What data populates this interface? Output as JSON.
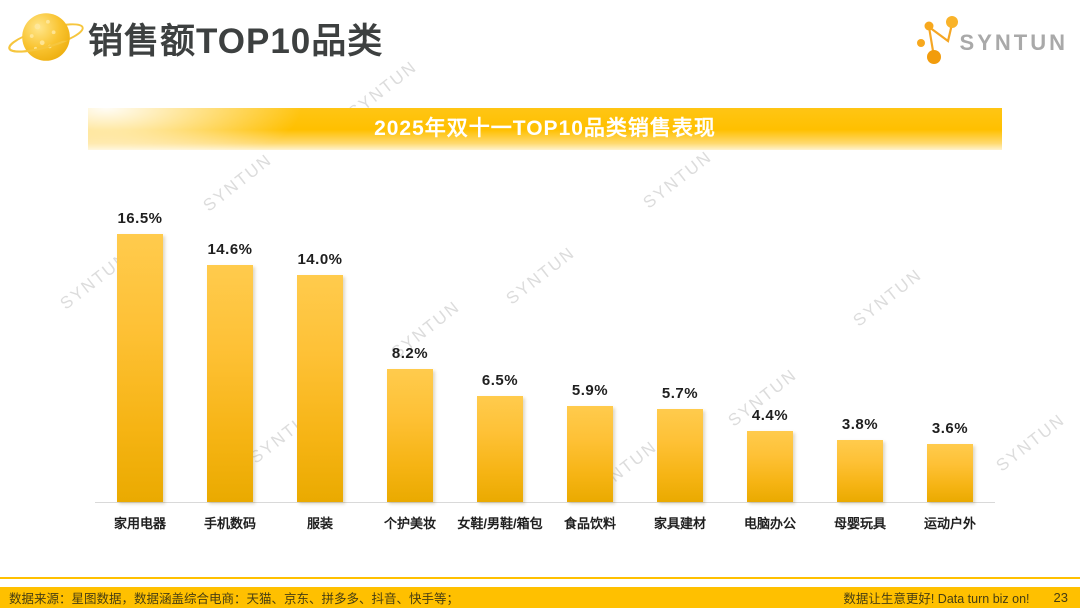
{
  "header": {
    "title": "销售额TOP10品类",
    "brand": "SYNTUN"
  },
  "banner": {
    "title": "2025年双十一TOP10品类销售表现"
  },
  "chart_data": {
    "type": "bar",
    "title": "2025年双十一TOP10品类销售表现",
    "categories": [
      "家用电器",
      "手机数码",
      "服装",
      "个护美妆",
      "女鞋/男鞋/箱包",
      "食品饮料",
      "家具建材",
      "电脑办公",
      "母婴玩具",
      "运动户外"
    ],
    "values": [
      16.5,
      14.6,
      14.0,
      8.2,
      6.5,
      5.9,
      5.7,
      4.4,
      3.8,
      3.6
    ],
    "value_suffix": "%",
    "xlabel": "",
    "ylabel": "",
    "ylim": [
      0,
      18
    ],
    "grid": false,
    "legend": "none",
    "bar_color_top": "#FFCB4D",
    "bar_color_bottom": "#EAAA00"
  },
  "watermark": {
    "text": "SYNTUN"
  },
  "footer": {
    "source": "数据来源：星图数据，数据涵盖综合电商：天猫、京东、拼多多、抖音、快手等；",
    "slogan": "数据让生意更好! Data turn biz on!",
    "page_number": "23"
  },
  "colors": {
    "accent": "#FFC000",
    "title": "#3D4040",
    "bar_gradient_top": "#FFCB4D",
    "bar_gradient_bottom": "#EAAA00",
    "watermark": "#DCDCDC",
    "brand_orange": "#F5A623",
    "brand_gray": "#A9A9A9"
  }
}
